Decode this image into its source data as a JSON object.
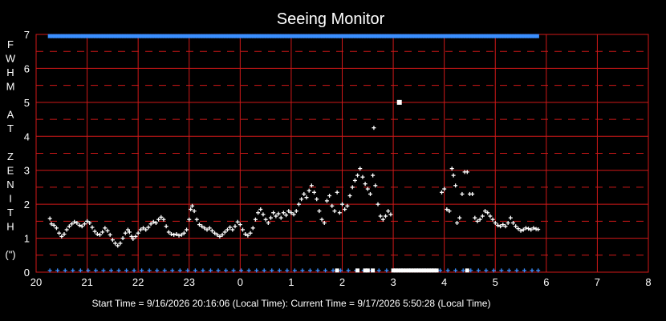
{
  "chart_data": {
    "type": "scatter",
    "title": "Seeing Monitor",
    "ylabel_chars": [
      "F",
      "W",
      "H",
      "M",
      "",
      "A",
      "T",
      "",
      "Z",
      "E",
      "N",
      "I",
      "T",
      "H",
      "",
      "(\")"
    ],
    "x_tick_labels": [
      "20",
      "21",
      "22",
      "23",
      "0",
      "1",
      "2",
      "3",
      "4",
      "5",
      "6",
      "7",
      "8"
    ],
    "y_tick_labels": [
      "0",
      "1",
      "2",
      "3",
      "4",
      "5",
      "6",
      "7"
    ],
    "xlim_hours": [
      20,
      32
    ],
    "ylim": [
      0,
      7
    ],
    "grid": true,
    "colors": {
      "grid": "#d01818",
      "points": "#ffffff",
      "status": "#3a8fff",
      "background": "#000000"
    },
    "footer": "Start Time = 9/16/2026 20:16:06 (Local Time):  Current Time = 9/17/2026 5:50:28 (Local Time)",
    "series": [
      {
        "marker": "plus",
        "points": [
          [
            20.27,
            1.58
          ],
          [
            20.3,
            1.42
          ],
          [
            20.35,
            1.38
          ],
          [
            20.4,
            1.3
          ],
          [
            20.45,
            1.15
          ],
          [
            20.5,
            1.05
          ],
          [
            20.55,
            1.12
          ],
          [
            20.6,
            1.25
          ],
          [
            20.65,
            1.35
          ],
          [
            20.7,
            1.42
          ],
          [
            20.75,
            1.48
          ],
          [
            20.8,
            1.45
          ],
          [
            20.85,
            1.38
          ],
          [
            20.9,
            1.35
          ],
          [
            20.95,
            1.42
          ],
          [
            21.0,
            1.5
          ],
          [
            21.05,
            1.45
          ],
          [
            21.1,
            1.32
          ],
          [
            21.15,
            1.2
          ],
          [
            21.2,
            1.12
          ],
          [
            21.25,
            1.1
          ],
          [
            21.3,
            1.18
          ],
          [
            21.35,
            1.3
          ],
          [
            21.4,
            1.22
          ],
          [
            21.45,
            1.1
          ],
          [
            21.5,
            0.95
          ],
          [
            21.55,
            0.85
          ],
          [
            21.6,
            0.78
          ],
          [
            21.65,
            0.85
          ],
          [
            21.7,
            1.0
          ],
          [
            21.75,
            1.15
          ],
          [
            21.8,
            1.25
          ],
          [
            21.83,
            1.18
          ],
          [
            21.87,
            1.05
          ],
          [
            21.9,
            0.98
          ],
          [
            21.95,
            1.05
          ],
          [
            22.0,
            1.15
          ],
          [
            22.05,
            1.25
          ],
          [
            22.1,
            1.3
          ],
          [
            22.15,
            1.25
          ],
          [
            22.2,
            1.32
          ],
          [
            22.25,
            1.42
          ],
          [
            22.3,
            1.48
          ],
          [
            22.35,
            1.45
          ],
          [
            22.4,
            1.55
          ],
          [
            22.45,
            1.62
          ],
          [
            22.5,
            1.55
          ],
          [
            22.55,
            1.35
          ],
          [
            22.6,
            1.18
          ],
          [
            22.65,
            1.12
          ],
          [
            22.7,
            1.1
          ],
          [
            22.75,
            1.12
          ],
          [
            22.8,
            1.08
          ],
          [
            22.85,
            1.1
          ],
          [
            22.9,
            1.15
          ],
          [
            22.95,
            1.25
          ],
          [
            23.0,
            1.55
          ],
          [
            23.03,
            1.85
          ],
          [
            23.06,
            1.95
          ],
          [
            23.1,
            1.8
          ],
          [
            23.15,
            1.55
          ],
          [
            23.2,
            1.4
          ],
          [
            23.25,
            1.35
          ],
          [
            23.3,
            1.3
          ],
          [
            23.35,
            1.25
          ],
          [
            23.4,
            1.3
          ],
          [
            23.45,
            1.22
          ],
          [
            23.5,
            1.15
          ],
          [
            23.55,
            1.1
          ],
          [
            23.6,
            1.05
          ],
          [
            23.65,
            1.1
          ],
          [
            23.7,
            1.18
          ],
          [
            23.75,
            1.25
          ],
          [
            23.8,
            1.32
          ],
          [
            23.85,
            1.25
          ],
          [
            23.9,
            1.35
          ],
          [
            23.95,
            1.48
          ],
          [
            24.0,
            1.4
          ],
          [
            24.05,
            1.25
          ],
          [
            24.1,
            1.12
          ],
          [
            24.15,
            1.08
          ],
          [
            24.2,
            1.15
          ],
          [
            24.25,
            1.3
          ],
          [
            24.3,
            1.55
          ],
          [
            24.35,
            1.75
          ],
          [
            24.4,
            1.85
          ],
          [
            24.45,
            1.7
          ],
          [
            24.5,
            1.55
          ],
          [
            24.55,
            1.45
          ],
          [
            24.6,
            1.6
          ],
          [
            24.65,
            1.75
          ],
          [
            24.7,
            1.65
          ],
          [
            24.75,
            1.72
          ],
          [
            24.8,
            1.6
          ],
          [
            24.85,
            1.75
          ],
          [
            24.9,
            1.68
          ],
          [
            24.95,
            1.8
          ],
          [
            25.0,
            1.75
          ],
          [
            25.05,
            1.7
          ],
          [
            25.1,
            1.8
          ],
          [
            25.15,
            2.0
          ],
          [
            25.2,
            2.15
          ],
          [
            25.25,
            2.3
          ],
          [
            25.3,
            2.2
          ],
          [
            25.35,
            2.4
          ],
          [
            25.4,
            2.55
          ],
          [
            25.45,
            2.35
          ],
          [
            25.5,
            2.15
          ],
          [
            25.55,
            1.8
          ],
          [
            25.6,
            1.55
          ],
          [
            25.65,
            1.45
          ],
          [
            25.7,
            2.1
          ],
          [
            25.75,
            2.25
          ],
          [
            25.8,
            1.95
          ],
          [
            25.85,
            1.8
          ],
          [
            25.9,
            2.35
          ],
          [
            25.95,
            1.75
          ],
          [
            26.0,
            2.0
          ],
          [
            26.05,
            1.85
          ],
          [
            26.1,
            1.95
          ],
          [
            26.15,
            2.25
          ],
          [
            26.2,
            2.5
          ],
          [
            26.25,
            2.7
          ],
          [
            26.3,
            2.85
          ],
          [
            26.35,
            3.05
          ],
          [
            26.4,
            2.8
          ],
          [
            26.45,
            2.6
          ],
          [
            26.5,
            2.45
          ],
          [
            26.55,
            2.3
          ],
          [
            26.6,
            2.85
          ],
          [
            26.62,
            4.25
          ],
          [
            26.65,
            2.55
          ],
          [
            26.7,
            2.0
          ],
          [
            26.75,
            1.65
          ],
          [
            26.8,
            1.55
          ],
          [
            26.85,
            1.65
          ],
          [
            26.9,
            1.8
          ],
          [
            26.95,
            1.7
          ],
          [
            27.95,
            2.35
          ],
          [
            28.0,
            2.45
          ],
          [
            28.05,
            1.85
          ],
          [
            28.1,
            1.8
          ],
          [
            28.15,
            3.05
          ],
          [
            28.18,
            2.85
          ],
          [
            28.22,
            2.55
          ],
          [
            28.25,
            1.45
          ],
          [
            28.3,
            1.6
          ],
          [
            28.35,
            2.3
          ],
          [
            28.4,
            2.95
          ],
          [
            28.45,
            2.95
          ],
          [
            28.5,
            2.3
          ],
          [
            28.55,
            2.3
          ],
          [
            28.6,
            1.6
          ],
          [
            28.65,
            1.5
          ],
          [
            28.7,
            1.55
          ],
          [
            28.75,
            1.65
          ],
          [
            28.8,
            1.8
          ],
          [
            28.85,
            1.75
          ],
          [
            28.9,
            1.65
          ],
          [
            28.95,
            1.55
          ],
          [
            29.0,
            1.45
          ],
          [
            29.05,
            1.38
          ],
          [
            29.1,
            1.35
          ],
          [
            29.15,
            1.4
          ],
          [
            29.2,
            1.35
          ],
          [
            29.25,
            1.45
          ],
          [
            29.3,
            1.6
          ],
          [
            29.35,
            1.45
          ],
          [
            29.4,
            1.35
          ],
          [
            29.45,
            1.28
          ],
          [
            29.5,
            1.22
          ],
          [
            29.55,
            1.25
          ],
          [
            29.6,
            1.3
          ],
          [
            29.65,
            1.28
          ],
          [
            29.7,
            1.25
          ],
          [
            29.75,
            1.3
          ],
          [
            29.8,
            1.27
          ],
          [
            29.84,
            1.26
          ]
        ]
      },
      {
        "marker": "square",
        "points": [
          [
            27.12,
            5.0
          ]
        ]
      }
    ],
    "status_top_range_hours": [
      20.27,
      29.84
    ],
    "status_top_value": 6.95,
    "status_bottom_value": 0.05,
    "status_bottom_hours": [
      20.27,
      20.42,
      20.57,
      20.72,
      20.87,
      21.02,
      21.17,
      21.32,
      21.47,
      21.62,
      21.77,
      21.92,
      22.07,
      22.22,
      22.37,
      22.52,
      22.67,
      22.82,
      22.97,
      23.12,
      23.27,
      23.42,
      23.57,
      23.72,
      23.87,
      24.02,
      24.17,
      24.32,
      24.47,
      24.62,
      24.77,
      24.92,
      25.07,
      25.22,
      25.37,
      25.52,
      25.67,
      25.82,
      25.97,
      26.12,
      26.27,
      26.42,
      26.57,
      26.72,
      26.87,
      27.02,
      27.17,
      27.32,
      27.47,
      27.62,
      27.77,
      27.92,
      28.07,
      28.22,
      28.37,
      28.52,
      28.67,
      28.82,
      28.97,
      29.12,
      29.27,
      29.42,
      29.57,
      29.72,
      29.84
    ],
    "clear_bottom_hours": [
      25.9,
      26.3,
      26.45,
      26.5,
      26.6,
      27.0,
      27.05,
      27.1,
      27.15,
      27.2,
      27.25,
      27.3,
      27.35,
      27.4,
      27.45,
      27.5,
      27.55,
      27.6,
      27.65,
      27.7,
      27.75,
      27.8,
      27.85,
      28.45
    ]
  }
}
